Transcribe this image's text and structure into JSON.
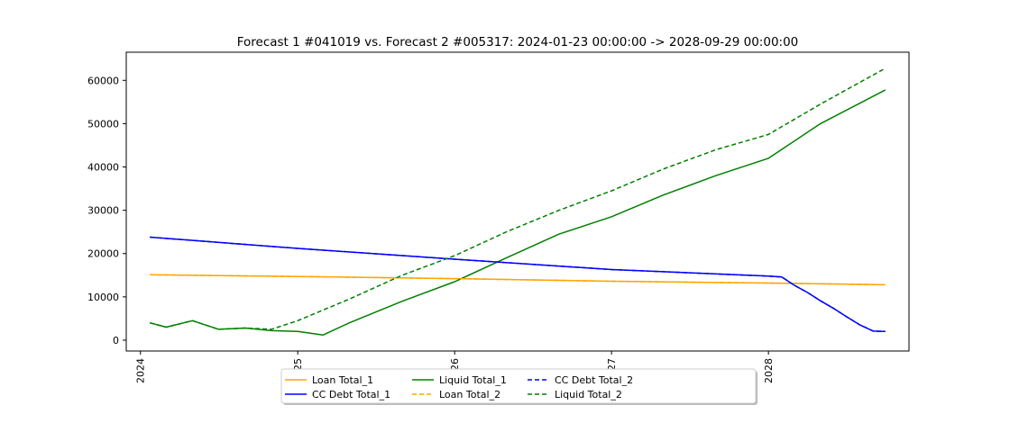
{
  "chart_data": {
    "type": "line",
    "title": "Forecast 1 #041019 vs. Forecast 2 #005317: 2024-01-23 00:00:00 -> 2028-09-29 00:00:00",
    "xlabel": "",
    "ylabel": "",
    "x_range": [
      "2023-11-29",
      "2028-11-23"
    ],
    "ylim": [
      -2500,
      66500
    ],
    "x_ticks": [
      {
        "date": "2024-01-01",
        "label": "2024"
      },
      {
        "date": "2025-01-01",
        "label": "25"
      },
      {
        "date": "2026-01-01",
        "label": "26"
      },
      {
        "date": "2027-01-01",
        "label": "27"
      },
      {
        "date": "2028-01-01",
        "label": "2028"
      }
    ],
    "y_ticks": [
      0,
      10000,
      20000,
      30000,
      40000,
      50000,
      60000
    ],
    "grid": false,
    "legend_placement": "bottom-center",
    "series": [
      {
        "name": "Loan Total_1",
        "color": "#ffa500",
        "style": "solid",
        "points": [
          [
            "2024-01-23",
            15100
          ],
          [
            "2025-01-01",
            14700
          ],
          [
            "2026-01-01",
            14200
          ],
          [
            "2027-01-01",
            13600
          ],
          [
            "2028-01-01",
            13200
          ],
          [
            "2028-09-29",
            12800
          ]
        ]
      },
      {
        "name": "CC Debt Total_1",
        "color": "#0000ff",
        "style": "solid",
        "points": [
          [
            "2024-01-23",
            23800
          ],
          [
            "2025-01-01",
            21200
          ],
          [
            "2026-01-01",
            18700
          ],
          [
            "2027-01-01",
            16300
          ],
          [
            "2028-01-01",
            14800
          ],
          [
            "2028-02-01",
            14600
          ],
          [
            "2028-03-01",
            12700
          ],
          [
            "2028-04-01",
            11000
          ],
          [
            "2028-05-01",
            9100
          ],
          [
            "2028-06-01",
            7300
          ],
          [
            "2028-07-01",
            5400
          ],
          [
            "2028-08-01",
            3500
          ],
          [
            "2028-09-01",
            2100
          ],
          [
            "2028-09-29",
            2000
          ]
        ]
      },
      {
        "name": "Liquid Total_1",
        "color": "#008000",
        "style": "solid",
        "points": [
          [
            "2024-01-23",
            4000
          ],
          [
            "2024-03-01",
            3000
          ],
          [
            "2024-05-01",
            4500
          ],
          [
            "2024-07-01",
            2500
          ],
          [
            "2024-09-01",
            2800
          ],
          [
            "2024-11-01",
            2200
          ],
          [
            "2025-01-01",
            2000
          ],
          [
            "2025-03-01",
            1200
          ],
          [
            "2025-05-01",
            4000
          ],
          [
            "2025-09-01",
            9000
          ],
          [
            "2026-01-01",
            13500
          ],
          [
            "2026-05-01",
            19000
          ],
          [
            "2026-09-01",
            24500
          ],
          [
            "2027-01-01",
            28500
          ],
          [
            "2027-05-01",
            33500
          ],
          [
            "2027-09-01",
            38000
          ],
          [
            "2028-01-01",
            42000
          ],
          [
            "2028-05-01",
            50000
          ],
          [
            "2028-09-29",
            57800
          ]
        ]
      },
      {
        "name": "Loan Total_2",
        "color": "#ffa500",
        "style": "dashed",
        "points": [
          [
            "2024-01-23",
            15100
          ],
          [
            "2025-01-01",
            14700
          ],
          [
            "2026-01-01",
            14200
          ],
          [
            "2027-01-01",
            13600
          ],
          [
            "2028-01-01",
            13200
          ],
          [
            "2028-09-29",
            12800
          ]
        ]
      },
      {
        "name": "CC Debt Total_2",
        "color": "#0000ff",
        "style": "dashed",
        "points": [
          [
            "2024-01-23",
            23800
          ],
          [
            "2025-01-01",
            21200
          ],
          [
            "2026-01-01",
            18700
          ],
          [
            "2027-01-01",
            16300
          ],
          [
            "2028-01-01",
            14800
          ],
          [
            "2028-02-01",
            14600
          ],
          [
            "2028-03-01",
            12700
          ],
          [
            "2028-04-01",
            11000
          ],
          [
            "2028-05-01",
            9100
          ],
          [
            "2028-06-01",
            7300
          ],
          [
            "2028-07-01",
            5400
          ],
          [
            "2028-08-01",
            3500
          ],
          [
            "2028-09-01",
            2100
          ],
          [
            "2028-09-29",
            2000
          ]
        ]
      },
      {
        "name": "Liquid Total_2",
        "color": "#008000",
        "style": "dashed",
        "points": [
          [
            "2024-01-23",
            4000
          ],
          [
            "2024-03-01",
            3000
          ],
          [
            "2024-05-01",
            4500
          ],
          [
            "2024-07-01",
            2500
          ],
          [
            "2024-09-01",
            2800
          ],
          [
            "2024-11-01",
            2500
          ],
          [
            "2025-01-01",
            4500
          ],
          [
            "2025-05-01",
            9500
          ],
          [
            "2025-09-01",
            15000
          ],
          [
            "2026-01-01",
            19500
          ],
          [
            "2026-05-01",
            25000
          ],
          [
            "2026-09-01",
            30000
          ],
          [
            "2027-01-01",
            34500
          ],
          [
            "2027-05-01",
            39500
          ],
          [
            "2027-09-01",
            44000
          ],
          [
            "2028-01-01",
            47500
          ],
          [
            "2028-05-01",
            54500
          ],
          [
            "2028-09-29",
            62800
          ]
        ]
      }
    ]
  }
}
